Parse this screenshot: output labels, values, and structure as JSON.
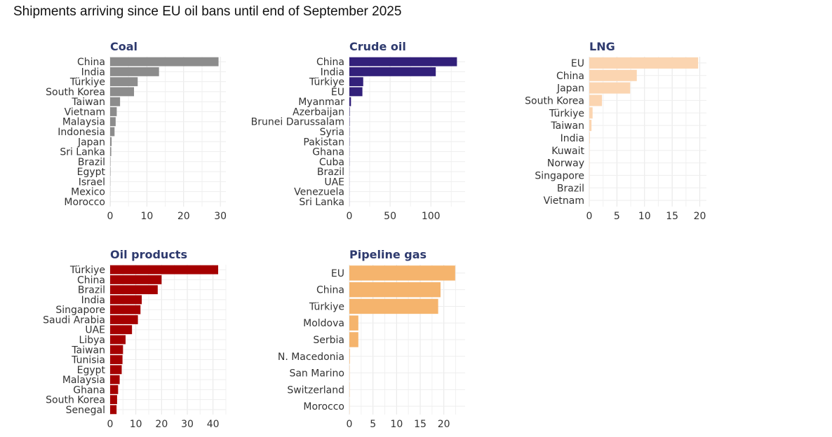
{
  "subtitle": "Shipments arriving since EU oil bans until end of September 2025",
  "chart_data": [
    {
      "type": "bar",
      "orientation": "horizontal",
      "title": "Coal",
      "color": "#8c8c8c",
      "categories": [
        "China",
        "India",
        "Türkiye",
        "South Korea",
        "Taiwan",
        "Vietnam",
        "Malaysia",
        "Indonesia",
        "Japan",
        "Sri Lanka",
        "Brazil",
        "Egypt",
        "Israel",
        "Mexico",
        "Morocco"
      ],
      "values": [
        29.5,
        13.3,
        7.5,
        6.5,
        2.7,
        1.8,
        1.5,
        1.2,
        0.4,
        0.3,
        0.1,
        0.1,
        0.05,
        0.03,
        0.02
      ],
      "xlim": [
        0,
        31.5
      ],
      "xticks": [
        0,
        10,
        20,
        30
      ]
    },
    {
      "type": "bar",
      "orientation": "horizontal",
      "title": "Crude oil",
      "color": "#32207a",
      "categories": [
        "China",
        "India",
        "Türkiye",
        "EU",
        "Myanmar",
        "Azerbaijan",
        "Brunei Darussalam",
        "Syria",
        "Pakistan",
        "Ghana",
        "Cuba",
        "Brazil",
        "UAE",
        "Venezuela",
        "Sri Lanka"
      ],
      "values": [
        132,
        106,
        17,
        16,
        2,
        0.5,
        0.4,
        0.3,
        0.3,
        0.2,
        0.2,
        0.1,
        0.1,
        0.1,
        0.1
      ],
      "xlim": [
        0,
        142
      ],
      "xticks": [
        0,
        50,
        100
      ]
    },
    {
      "type": "bar",
      "orientation": "horizontal",
      "title": "LNG",
      "color": "#fbd5b1",
      "categories": [
        "EU",
        "China",
        "Japan",
        "South Korea",
        "Türkiye",
        "Taiwan",
        "India",
        "Kuwait",
        "Norway",
        "Singapore",
        "Brazil",
        "Vietnam"
      ],
      "values": [
        19.7,
        8.6,
        7.4,
        2.3,
        0.6,
        0.4,
        0.1,
        0.05,
        0.05,
        0.03,
        0.02,
        0.01
      ],
      "xlim": [
        0,
        21.2
      ],
      "xticks": [
        0,
        5,
        10,
        15,
        20
      ]
    },
    {
      "type": "bar",
      "orientation": "horizontal",
      "title": "Oil products",
      "color": "#a50000",
      "categories": [
        "Türkiye",
        "China",
        "Brazil",
        "India",
        "Singapore",
        "Saudi Arabia",
        "UAE",
        "Libya",
        "Taiwan",
        "Tunisia",
        "Egypt",
        "Malaysia",
        "Ghana",
        "South Korea",
        "Senegal"
      ],
      "values": [
        42,
        20,
        18.5,
        12.3,
        11.8,
        10.8,
        8.5,
        6,
        5,
        4.8,
        4.5,
        3.7,
        3.1,
        2.7,
        2.5
      ],
      "xlim": [
        0,
        45
      ],
      "xticks": [
        0,
        10,
        20,
        30,
        40
      ]
    },
    {
      "type": "bar",
      "orientation": "horizontal",
      "title": "Pipeline gas",
      "color": "#f5b46d",
      "categories": [
        "EU",
        "China",
        "Türkiye",
        "Moldova",
        "Serbia",
        "N. Macedonia",
        "San Marino",
        "Switzerland",
        "Morocco"
      ],
      "values": [
        22.4,
        19.3,
        18.8,
        1.9,
        1.9,
        0.1,
        0.05,
        0.05,
        0.03
      ],
      "xlim": [
        0,
        24.5
      ],
      "xticks": [
        0,
        5,
        10,
        15,
        20
      ]
    }
  ]
}
